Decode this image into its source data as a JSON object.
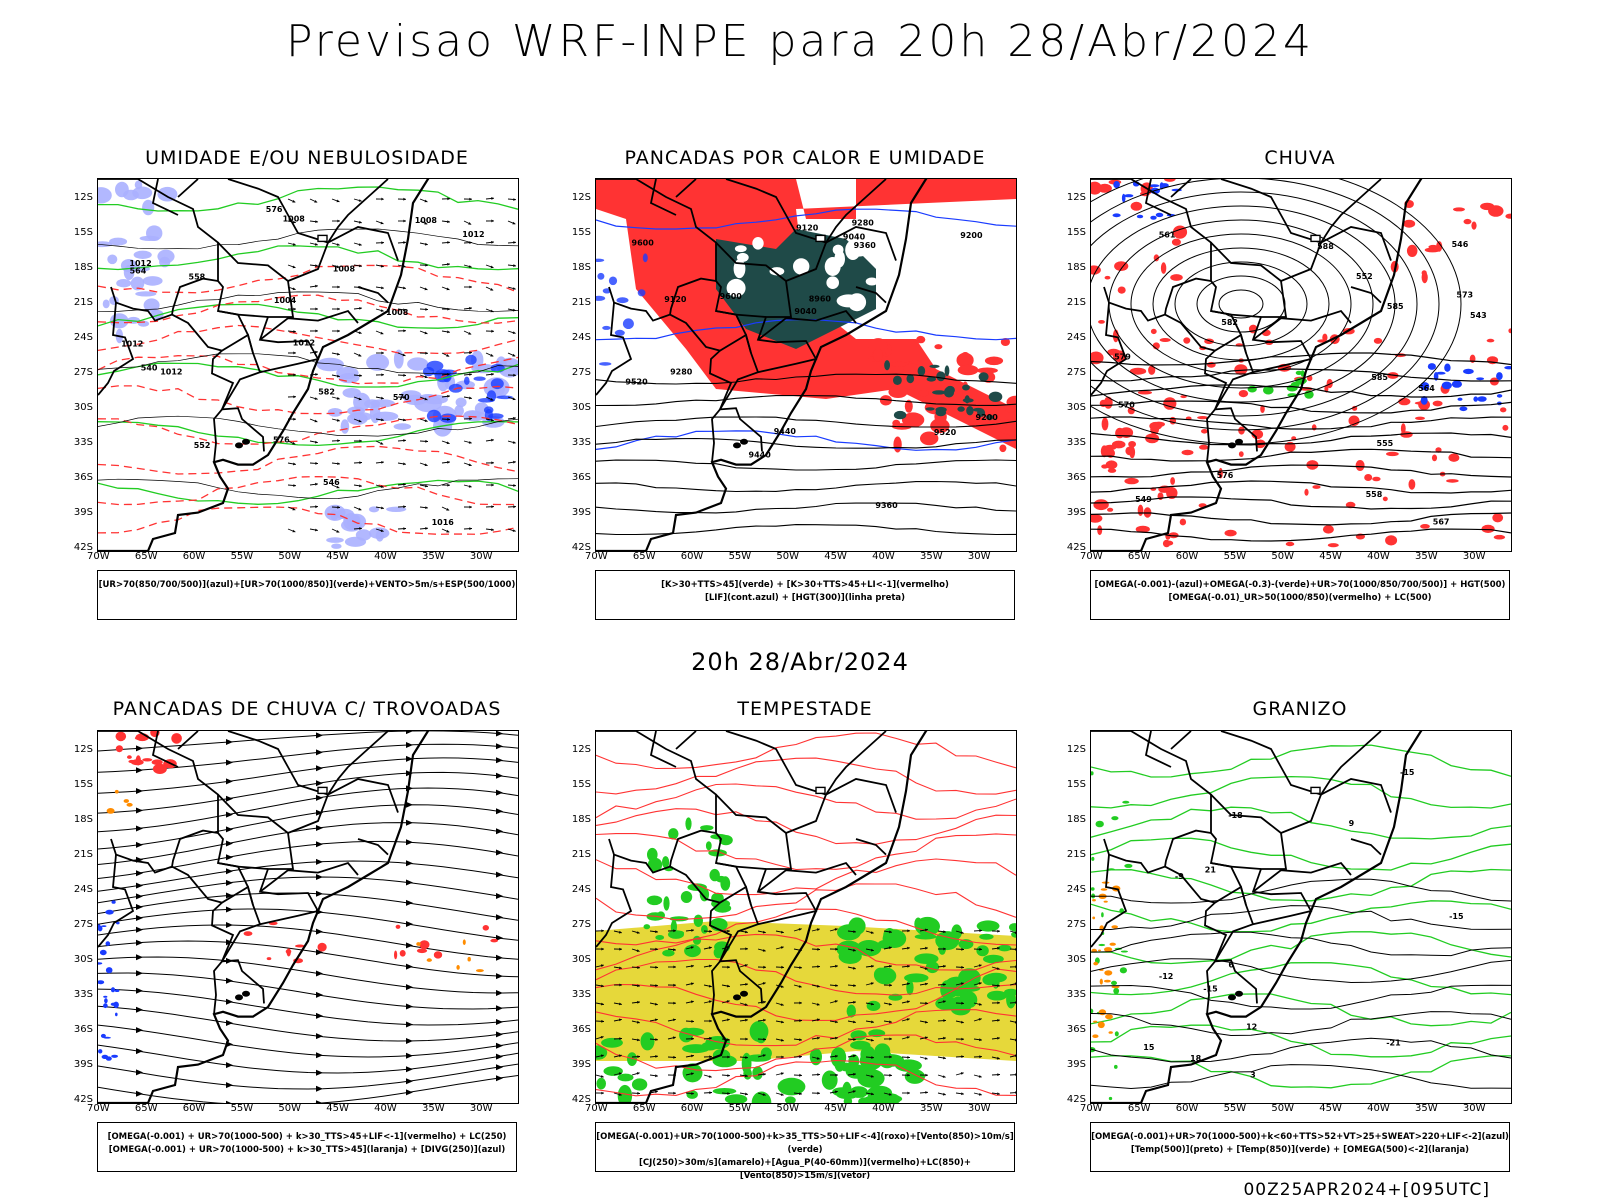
{
  "main_title": "Previsao WRF-INPE  para 20h 28/Abr/2024",
  "sub_title": "20h 28/Abr/2024",
  "footer": "00Z25APR2024+[095UTC]",
  "lat_labels": [
    "12S",
    "15S",
    "18S",
    "21S",
    "24S",
    "27S",
    "30S",
    "33S",
    "36S",
    "39S",
    "42S"
  ],
  "lon_labels": [
    "70W",
    "65W",
    "60W",
    "55W",
    "50W",
    "45W",
    "40W",
    "35W",
    "30W"
  ],
  "panels": [
    {
      "title": "UMIDADE E/OU NEBULOSIDADE",
      "legend_line1": "[UR>70(850/700/500)](azul)+[UR>70(1000/850)](verde)+VENTO>5m/s+ESP(500/1000)",
      "legend_line2": "",
      "contour_labels": [
        "1012",
        "1008",
        "1008",
        "1012",
        "1012",
        "1016",
        "1012",
        "1008",
        "1004",
        "1008",
        "1012",
        "570",
        "576",
        "564",
        "558",
        "552",
        "546",
        "540",
        "582",
        "576"
      ]
    },
    {
      "title": "PANCADAS POR CALOR E UMIDADE",
      "legend_line1": "[K>30+TTS>45](verde) + [K>30+TTS>45+LI<-1](vermelho)",
      "legend_line2": "[LIF](cont.azul) + [HGT(300)](linha preta)",
      "contour_labels": [
        "9600",
        "9520",
        "9440",
        "9360",
        "9280",
        "9200",
        "9120",
        "9040",
        "8960",
        "9600",
        "9520",
        "9440",
        "9360",
        "9280",
        "9200",
        "9120",
        "9040"
      ]
    },
    {
      "title": "CHUVA",
      "legend_line1": "[OMEGA(-0.001)-(azul)+OMEGA(-0.3)-(verde)+UR>70(1000/850/700/500)] + HGT(500)",
      "legend_line2": "[OMEGA(-0.01)_UR>50(1000/850)(vermelho) + LC(500)",
      "contour_labels": [
        "585",
        "588",
        "585",
        "579",
        "576",
        "573",
        "570",
        "567",
        "564",
        "561",
        "558",
        "555",
        "552",
        "549",
        "546",
        "543",
        "582"
      ]
    },
    {
      "title": "PANCADAS DE CHUVA C/ TROVOADAS",
      "legend_line1": "[OMEGA(-0.001) + UR>70(1000-500) + k>30_TTS>45+LIF<-1](vermelho) + LC(250)",
      "legend_line2": "[OMEGA(-0.001) + UR>70(1000-500) + k>30_TTS>45](laranja) + [DIVG(250)](azul)",
      "contour_labels": []
    },
    {
      "title": "TEMPESTADE",
      "legend_line1": "[OMEGA(-0.001)+UR>70(1000-500)+k>35_TTS>50+LIF<-4](roxo)+[Vento(850)>10m/s](verde)",
      "legend_line2": "[CJ(250)>30m/s](amarelo)+[Agua_P(40-60mm)](vermelho)+LC(850)+[Vento(850)>15m/s](vetor)",
      "contour_labels": []
    },
    {
      "title": "GRANIZO",
      "legend_line1": "[OMEGA(-0.001)+UR>70(1000-500)+k<60+TTS>52+VT>25+SWEAT>220+LIF<-2](azul)",
      "legend_line2": "[Temp(500)](preto) + [Temp(850)](verde) + [OMEGA(500)<-2](laranja)",
      "contour_labels": [
        "-15",
        "-15",
        "-18",
        "-21",
        "-9",
        "-12",
        "-15",
        "15",
        "12",
        "9",
        "6",
        "3",
        "21",
        "18"
      ]
    }
  ],
  "colors": {
    "blue": "#1a3cff",
    "green": "#22cc22",
    "red": "#ff3333",
    "orange": "#ff8c00",
    "yellow": "#e6d83a",
    "lavender": "#aab0ff",
    "darkteal": "#1f4a48",
    "black": "#000000"
  }
}
